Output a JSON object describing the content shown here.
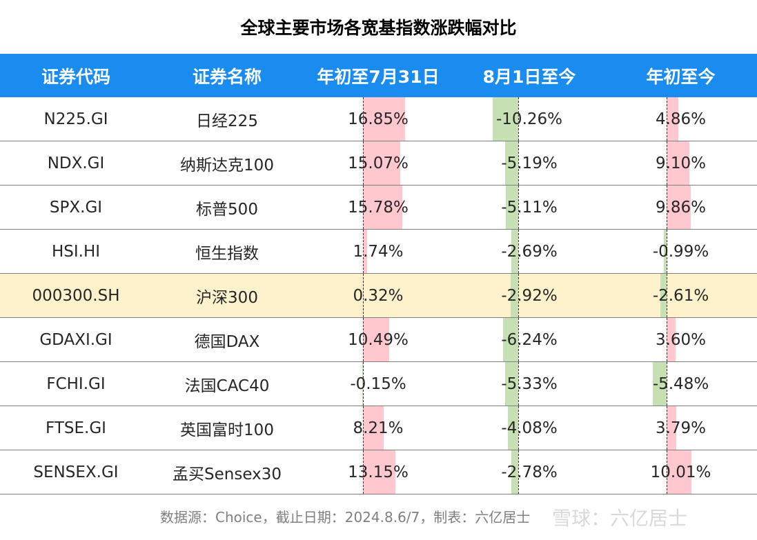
{
  "title": "全球主要市场各宽基指数涨跌幅对比",
  "headers": [
    "证券代码",
    "证券名称",
    "年初至7月31日",
    "8月1日至今",
    "年初至今"
  ],
  "colors": {
    "header_bg": "#1a8cf0",
    "positive_bar": "#ffc7ce",
    "negative_bar": "#c6e0b4",
    "highlight_row": "#fef2cc"
  },
  "chart_data": {
    "type": "table",
    "title": "全球主要市场各宽基指数涨跌幅对比",
    "columns": [
      "证券代码",
      "证券名称",
      "年初至7月31日",
      "8月1日至今",
      "年初至今"
    ],
    "highlighted_row": "000300.SH",
    "rows": [
      {
        "code": "N225.GI",
        "name": "日经225",
        "ytd_jul31": 16.85,
        "since_aug1": -10.26,
        "ytd": 4.86
      },
      {
        "code": "NDX.GI",
        "name": "纳斯达克100",
        "ytd_jul31": 15.07,
        "since_aug1": -5.19,
        "ytd": 9.1
      },
      {
        "code": "SPX.GI",
        "name": "标普500",
        "ytd_jul31": 15.78,
        "since_aug1": -5.11,
        "ytd": 9.86
      },
      {
        "code": "HSI.HI",
        "name": "恒生指数",
        "ytd_jul31": 1.74,
        "since_aug1": -2.69,
        "ytd": -0.99
      },
      {
        "code": "000300.SH",
        "name": "沪深300",
        "ytd_jul31": 0.32,
        "since_aug1": -2.92,
        "ytd": -2.61
      },
      {
        "code": "GDAXI.GI",
        "name": "德国DAX",
        "ytd_jul31": 10.49,
        "since_aug1": -6.24,
        "ytd": 3.6
      },
      {
        "code": "FCHI.GI",
        "name": "法国CAC40",
        "ytd_jul31": -0.15,
        "since_aug1": -5.33,
        "ytd": -5.48
      },
      {
        "code": "FTSE.GI",
        "name": "英国富时100",
        "ytd_jul31": 8.21,
        "since_aug1": -4.08,
        "ytd": 3.79
      },
      {
        "code": "SENSEX.GI",
        "name": "孟买Sensex30",
        "ytd_jul31": 13.15,
        "since_aug1": -2.78,
        "ytd": 10.01
      }
    ]
  },
  "source_note": "数据源：Choice，截止日期：2024.8.6/7，制表：六亿居士",
  "watermark": "雪球：六亿居士"
}
